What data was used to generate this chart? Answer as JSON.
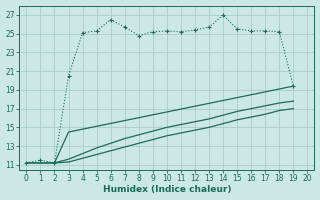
{
  "xlabel": "Humidex (Indice chaleur)",
  "bg_color": "#cce8e4",
  "grid_color": "#aaccca",
  "line_color": "#1a6b5a",
  "xlim": [
    -0.5,
    20.5
  ],
  "ylim": [
    10.5,
    28
  ],
  "xticks": [
    0,
    1,
    2,
    3,
    4,
    5,
    6,
    7,
    8,
    9,
    10,
    11,
    12,
    13,
    14,
    15,
    16,
    17,
    18,
    19,
    20
  ],
  "yticks": [
    11,
    13,
    15,
    17,
    19,
    21,
    23,
    25,
    27
  ],
  "curve1_x": [
    0,
    1,
    2,
    3,
    4,
    5,
    6,
    7,
    8,
    9,
    10,
    11,
    12,
    13,
    14,
    15,
    16,
    17,
    18,
    19
  ],
  "curve1_y": [
    11.2,
    11.5,
    11.2,
    20.5,
    25.1,
    25.3,
    26.5,
    25.7,
    24.8,
    25.2,
    25.3,
    25.2,
    25.4,
    25.7,
    27.0,
    25.5,
    25.3,
    25.3,
    25.2,
    19.4
  ],
  "curve2_x": [
    2,
    3,
    19
  ],
  "curve2_y": [
    11.2,
    14.5,
    19.4
  ],
  "curve3_x": [
    0,
    2,
    3,
    4,
    5,
    6,
    7,
    8,
    9,
    10,
    11,
    12,
    13,
    14,
    15,
    16,
    17,
    18,
    19
  ],
  "curve3_y": [
    11.2,
    11.2,
    11.6,
    12.2,
    12.8,
    13.3,
    13.8,
    14.2,
    14.6,
    15.0,
    15.3,
    15.6,
    15.9,
    16.3,
    16.7,
    17.0,
    17.3,
    17.6,
    17.8
  ],
  "curve4_x": [
    0,
    2,
    3,
    4,
    5,
    6,
    7,
    8,
    9,
    10,
    11,
    12,
    13,
    14,
    15,
    16,
    17,
    18,
    19
  ],
  "curve4_y": [
    11.2,
    11.2,
    11.3,
    11.7,
    12.1,
    12.5,
    12.9,
    13.3,
    13.7,
    14.1,
    14.4,
    14.7,
    15.0,
    15.4,
    15.8,
    16.1,
    16.4,
    16.8,
    17.0
  ]
}
